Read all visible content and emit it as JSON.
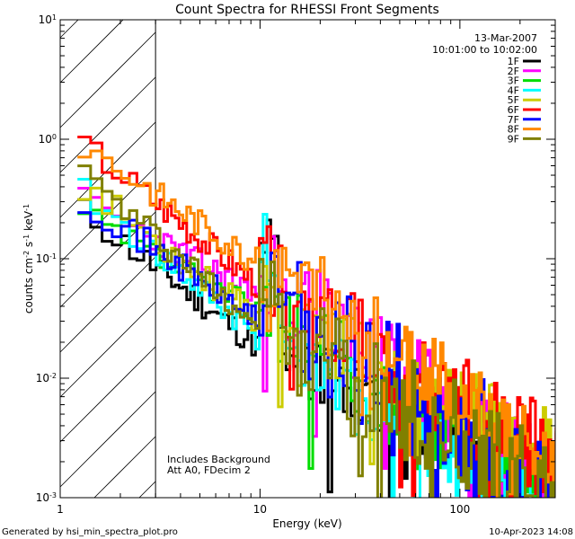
{
  "chart_data": {
    "type": "line",
    "title": "Count Spectra for RHESSI Front Segments",
    "xlabel": "Energy (keV)",
    "ylabel": "counts cm^-2 s^-1 keV^-1",
    "xscale": "log",
    "yscale": "log",
    "xlim": [
      1,
      300
    ],
    "ylim": [
      0.001,
      10
    ],
    "x_ticks": [
      {
        "value": 1,
        "label": "1"
      },
      {
        "value": 10,
        "label": "10"
      },
      {
        "value": 100,
        "label": "100"
      }
    ],
    "y_ticks": [
      {
        "value": 10,
        "base": "10",
        "exp": "1"
      },
      {
        "value": 1,
        "base": "10",
        "exp": "0"
      },
      {
        "value": 0.1,
        "base": "10",
        "exp": "-1"
      },
      {
        "value": 0.01,
        "base": "10",
        "exp": "-2"
      },
      {
        "value": 0.001,
        "base": "10",
        "exp": "-3"
      }
    ],
    "hatched_region": {
      "x_min": 1,
      "x_max": 3
    },
    "date": "13-Mar-2007",
    "time_range": "10:01:00 to 10:02:00",
    "annotations": [
      "Includes Background",
      "Att A0, FDecim 2"
    ],
    "series": [
      {
        "name": "1F",
        "color": "#000000",
        "base": 0.018,
        "pk": 0.15,
        "slope": 0.85,
        "amp": 0.3,
        "lowStart": 0.28,
        "lowEnd": 0.018,
        "seed": 11
      },
      {
        "name": "2F",
        "color": "#ff00ff",
        "base": 0.05,
        "pk": 0.085,
        "slope": 1.1,
        "amp": 0.45,
        "lowStart": 0.33,
        "lowEnd": 0.05,
        "seed": 23
      },
      {
        "name": "3F",
        "color": "#00dd00",
        "base": 0.03,
        "pk": 0.095,
        "slope": 1.05,
        "amp": 0.38,
        "lowStart": 0.24,
        "lowEnd": 0.035,
        "seed": 37
      },
      {
        "name": "4F",
        "color": "#00ffff",
        "base": 0.022,
        "pk": 0.14,
        "slope": 1.15,
        "amp": 0.36,
        "lowStart": 0.4,
        "lowEnd": 0.022,
        "seed": 41
      },
      {
        "name": "5F",
        "color": "#cccc00",
        "base": 0.034,
        "pk": 0.075,
        "slope": 0.8,
        "amp": 0.3,
        "lowStart": 0.47,
        "lowEnd": 0.03,
        "seed": 53
      },
      {
        "name": "6F",
        "color": "#ff0000",
        "base": 0.06,
        "pk": 0.09,
        "slope": 1.05,
        "amp": 0.4,
        "lowStart": 1.05,
        "lowEnd": 0.06,
        "seed": 67
      },
      {
        "name": "7F",
        "color": "#0000ff",
        "base": 0.04,
        "pk": 0.06,
        "slope": 1.1,
        "amp": 0.55,
        "lowStart": 0.35,
        "lowEnd": 0.03,
        "seed": 71
      },
      {
        "name": "8F",
        "color": "#ff8800",
        "base": 0.09,
        "pk": 0.1,
        "slope": 1.2,
        "amp": 0.34,
        "lowStart": 1.0,
        "lowEnd": 0.09,
        "seed": 83
      },
      {
        "name": "9F",
        "color": "#808000",
        "base": 0.028,
        "pk": 0.08,
        "slope": 1.05,
        "amp": 0.48,
        "lowStart": 0.58,
        "lowEnd": 0.028,
        "seed": 97
      }
    ]
  },
  "footer": {
    "generator": "Generated by hsi_min_spectra_plot.pro",
    "timestamp": "10-Apr-2023 14:08"
  }
}
